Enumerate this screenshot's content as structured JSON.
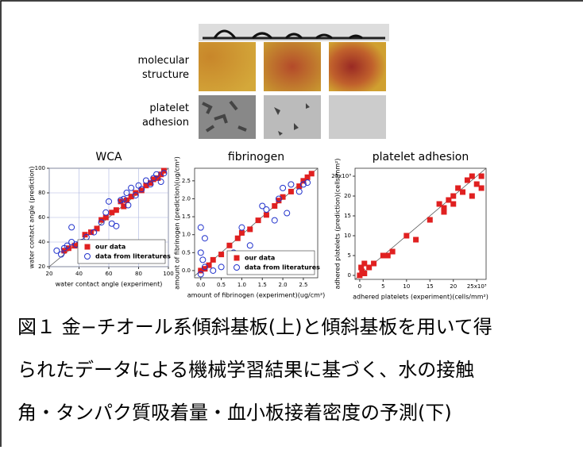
{
  "figure": {
    "panel_labels": [
      "molecular\nstructure",
      "platelet\nadhesion"
    ],
    "caption": [
      "図１ 金−チオール系傾斜基板(上)と傾斜基板を用いて得",
      "られたデータによる機械学習結果に基づく、水の接触",
      "角・タンパク質吸着量・血小板接着密度の予測(下)"
    ]
  },
  "chart_data": [
    {
      "type": "scatter",
      "title": "WCA",
      "x_label": "water contact angle (experiment)",
      "y_label": "water contact angle (prediction)",
      "xlim": [
        20,
        100
      ],
      "ylim": [
        20,
        100
      ],
      "xticks": [
        20,
        40,
        60,
        80,
        100
      ],
      "yticks": [
        20,
        40,
        60,
        80,
        100
      ],
      "grid": true,
      "legend": "lower right",
      "series": [
        {
          "name": "our data",
          "color": "#e02020",
          "marker": "square",
          "x": [
            30,
            33,
            37,
            40,
            44,
            48,
            52,
            55,
            58,
            62,
            65,
            68,
            70,
            72,
            75,
            78,
            82,
            85,
            88,
            90,
            93,
            95,
            97
          ],
          "values": [
            33,
            35,
            37,
            38,
            46,
            48,
            51,
            58,
            60,
            64,
            66,
            73,
            69,
            74,
            77,
            80,
            82,
            86,
            88,
            91,
            92,
            95,
            98
          ]
        },
        {
          "name": "data from literatures",
          "color": "#2233cc",
          "marker": "circle",
          "x": [
            25,
            28,
            30,
            32,
            35,
            35,
            38,
            42,
            45,
            50,
            55,
            58,
            60,
            62,
            65,
            68,
            70,
            72,
            73,
            75,
            78,
            80,
            82,
            85,
            88,
            90,
            92,
            95,
            97
          ],
          "values": [
            33,
            30,
            35,
            37,
            40,
            52,
            38,
            40,
            44,
            48,
            56,
            64,
            73,
            55,
            53,
            74,
            75,
            80,
            70,
            84,
            78,
            86,
            83,
            90,
            87,
            92,
            95,
            89,
            96
          ]
        }
      ]
    },
    {
      "type": "scatter",
      "title": "fibrinogen",
      "x_label": "amount of fibrinogen (experiment)(ug/cm²)",
      "y_label": "amount of fibrinogen (prediction)(ug/cm²)",
      "xlim": [
        -0.15,
        2.85
      ],
      "ylim": [
        -0.2,
        2.85
      ],
      "xticks": [
        {
          "value": 0,
          "label": "0.0"
        },
        0.5,
        {
          "value": 1,
          "label": "1.0"
        },
        1.5,
        {
          "value": 2,
          "label": "2.0"
        },
        2.5
      ],
      "yticks": [
        {
          "value": 0,
          "label": "0.0"
        },
        0.5,
        {
          "value": 1,
          "label": "1.0"
        },
        1.5,
        {
          "value": 2,
          "label": "2.0"
        },
        2.5
      ],
      "grid": false,
      "legend": "lower right",
      "series": [
        {
          "name": "our data",
          "color": "#e02020",
          "marker": "square",
          "x": [
            0,
            0.1,
            0.2,
            0.3,
            0.5,
            0.7,
            0.9,
            1.0,
            1.2,
            1.4,
            1.6,
            1.8,
            1.9,
            2.0,
            2.2,
            2.4,
            2.5,
            2.6,
            2.7
          ],
          "values": [
            0,
            0.05,
            0.15,
            0.3,
            0.45,
            0.7,
            0.9,
            1.05,
            1.15,
            1.4,
            1.55,
            1.8,
            1.95,
            2.05,
            2.2,
            2.35,
            2.5,
            2.6,
            2.7
          ]
        },
        {
          "name": "data from literatures",
          "color": "#2233cc",
          "marker": "circle",
          "x": [
            0,
            0,
            0.05,
            0.1,
            0,
            0.1,
            0.3,
            0.5,
            0.8,
            1.0,
            1.2,
            1.5,
            1.6,
            1.8,
            1.9,
            2.0,
            2.1,
            2.2,
            2.4,
            2.5,
            2.6
          ],
          "values": [
            0.5,
            1.2,
            0.3,
            0.9,
            -0.1,
            0.1,
            0,
            0.1,
            0.5,
            1.2,
            0.7,
            1.8,
            1.7,
            1.4,
            2.0,
            2.3,
            1.6,
            2.4,
            2.2,
            2.4,
            2.45
          ]
        }
      ]
    },
    {
      "type": "scatter",
      "title": "platelet adhesion",
      "x_label": "adhered platelets (experiment)(cells/mm²)",
      "y_label": "adhered platelets (prediction)(cells/mm²)",
      "xlim": [
        -1,
        27
      ],
      "ylim": [
        -1,
        27
      ],
      "xticks": [
        0,
        5,
        10,
        15,
        20,
        {
          "value": 25,
          "label": "25x10³"
        }
      ],
      "yticks": [
        0,
        5,
        10,
        15,
        20,
        {
          "value": 25,
          "label": "25x10³"
        }
      ],
      "grid": false,
      "color": "#e02020",
      "marker": "square",
      "x": [
        0,
        0.5,
        1,
        0.3,
        1,
        2,
        3,
        5,
        6,
        7,
        10,
        12,
        15,
        17,
        18,
        18,
        19,
        20,
        20,
        21,
        22,
        23,
        24,
        25,
        26,
        26,
        24
      ],
      "values": [
        0,
        1,
        0.5,
        2,
        3,
        2,
        3,
        5,
        5,
        6,
        10,
        9,
        14,
        18,
        17,
        16,
        19,
        20,
        18,
        22,
        21,
        24,
        25,
        23,
        25,
        22,
        20
      ]
    }
  ]
}
